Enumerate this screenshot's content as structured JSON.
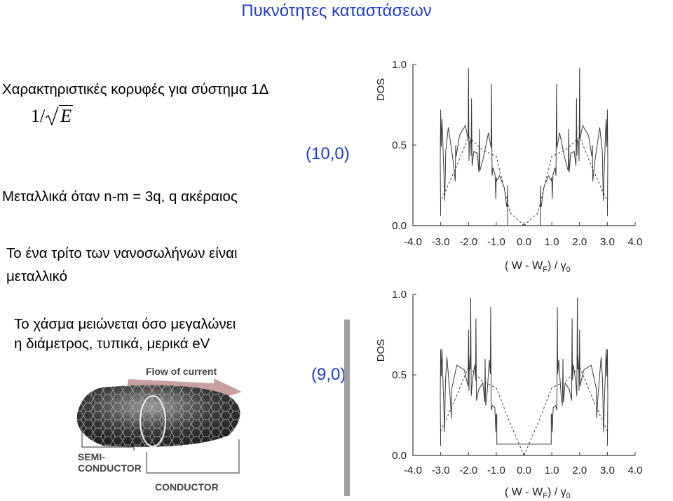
{
  "slide_title": "Πυκνότητες καταστάσεων",
  "bullets": {
    "peaks": "Χαρακτηριστικές κορυφές για σύστημα 1Δ",
    "formula_prefix": "1/",
    "formula_var": "E",
    "metallic_cond": "Μεταλλικά όταν n-m = 3q,   q ακέραιος",
    "third_line1": "Το ένα τρίτο των νανοσωλήνων είναι",
    "third_line2": "μεταλλικό",
    "gap_line1": "Το χάσμα μειώνεται όσο μεγαλώνει",
    "gap_line2": "η διάμετρος, τυπικά, μερικά eV"
  },
  "labels": {
    "top_tube": "(10,0)",
    "bottom_tube": "(9,0)"
  },
  "tube_figure": {
    "flow_label": "Flow of current",
    "semi_line1": "SEMI-",
    "semi_line2": "CONDUCTOR",
    "conductor_label": "CONDUCTOR"
  },
  "colors": {
    "title": "#1f3ecf",
    "label": "#1f3ecf",
    "plot_line": "#3a3a3a",
    "arrow": "#c9a0a0"
  },
  "chart_data": [
    {
      "type": "line",
      "name": "(10,0)",
      "ylabel": "DOS",
      "xlabel": "( W - W",
      "xlabel_sub": "F",
      "xlabel_tail": ") / γ",
      "xlabel_tail_sub": "0",
      "xlim": [
        -4.0,
        4.0
      ],
      "ylim": [
        0.0,
        1.0
      ],
      "xticks": [
        "-4.0",
        "-3.0",
        "-2.0",
        "-1.0",
        "0.0",
        "1.0",
        "2.0",
        "3.0",
        "4.0"
      ],
      "yticks": [
        "0.0",
        "0.5",
        "1.0"
      ],
      "data_start": -3.0,
      "data_end": 3.0,
      "gap": [
        -0.6,
        0.6
      ],
      "vhs_positions": [
        0.61,
        1.0,
        1.17,
        1.61,
        1.89,
        2.0,
        2.46,
        2.84,
        3.0
      ],
      "vhs_heights": [
        0.12,
        0.3,
        0.88,
        0.6,
        0.79,
        0.98,
        0.5,
        0.28,
        0.72
      ],
      "dashed_series": {
        "x": [
          0.0,
          0.5,
          1.0,
          1.5,
          2.0,
          2.5,
          3.0
        ],
        "y": [
          0.0,
          0.08,
          0.43,
          0.47,
          0.55,
          0.34,
          0.15
        ]
      }
    },
    {
      "type": "line",
      "name": "(9,0)",
      "ylabel": "DOS",
      "xlabel": "( W - W",
      "xlabel_sub": "F",
      "xlabel_tail": ") / γ",
      "xlabel_tail_sub": "0",
      "xlim": [
        -4.0,
        4.0
      ],
      "ylim": [
        0.0,
        1.0
      ],
      "xticks": [
        "-4.0",
        "-3.0",
        "-2.0",
        "-1.0",
        "0.0",
        "1.0",
        "2.0",
        "3.0",
        "4.0"
      ],
      "yticks": [
        "0.0",
        "0.5",
        "1.0"
      ],
      "data_start": -3.0,
      "data_end": 3.0,
      "gap": [
        -1.0,
        1.0
      ],
      "plateau": 0.07,
      "vhs_positions": [
        1.0,
        1.2,
        1.4,
        1.73,
        1.92,
        2.0,
        2.6,
        2.85,
        3.0
      ],
      "vhs_heights": [
        0.26,
        0.92,
        0.6,
        0.85,
        0.98,
        0.78,
        0.42,
        0.26,
        0.66
      ],
      "dashed_series": {
        "x": [
          0.0,
          0.5,
          1.0,
          1.5,
          2.0,
          2.5,
          3.0
        ],
        "y": [
          0.0,
          0.2,
          0.42,
          0.46,
          0.55,
          0.34,
          0.15
        ]
      }
    }
  ]
}
